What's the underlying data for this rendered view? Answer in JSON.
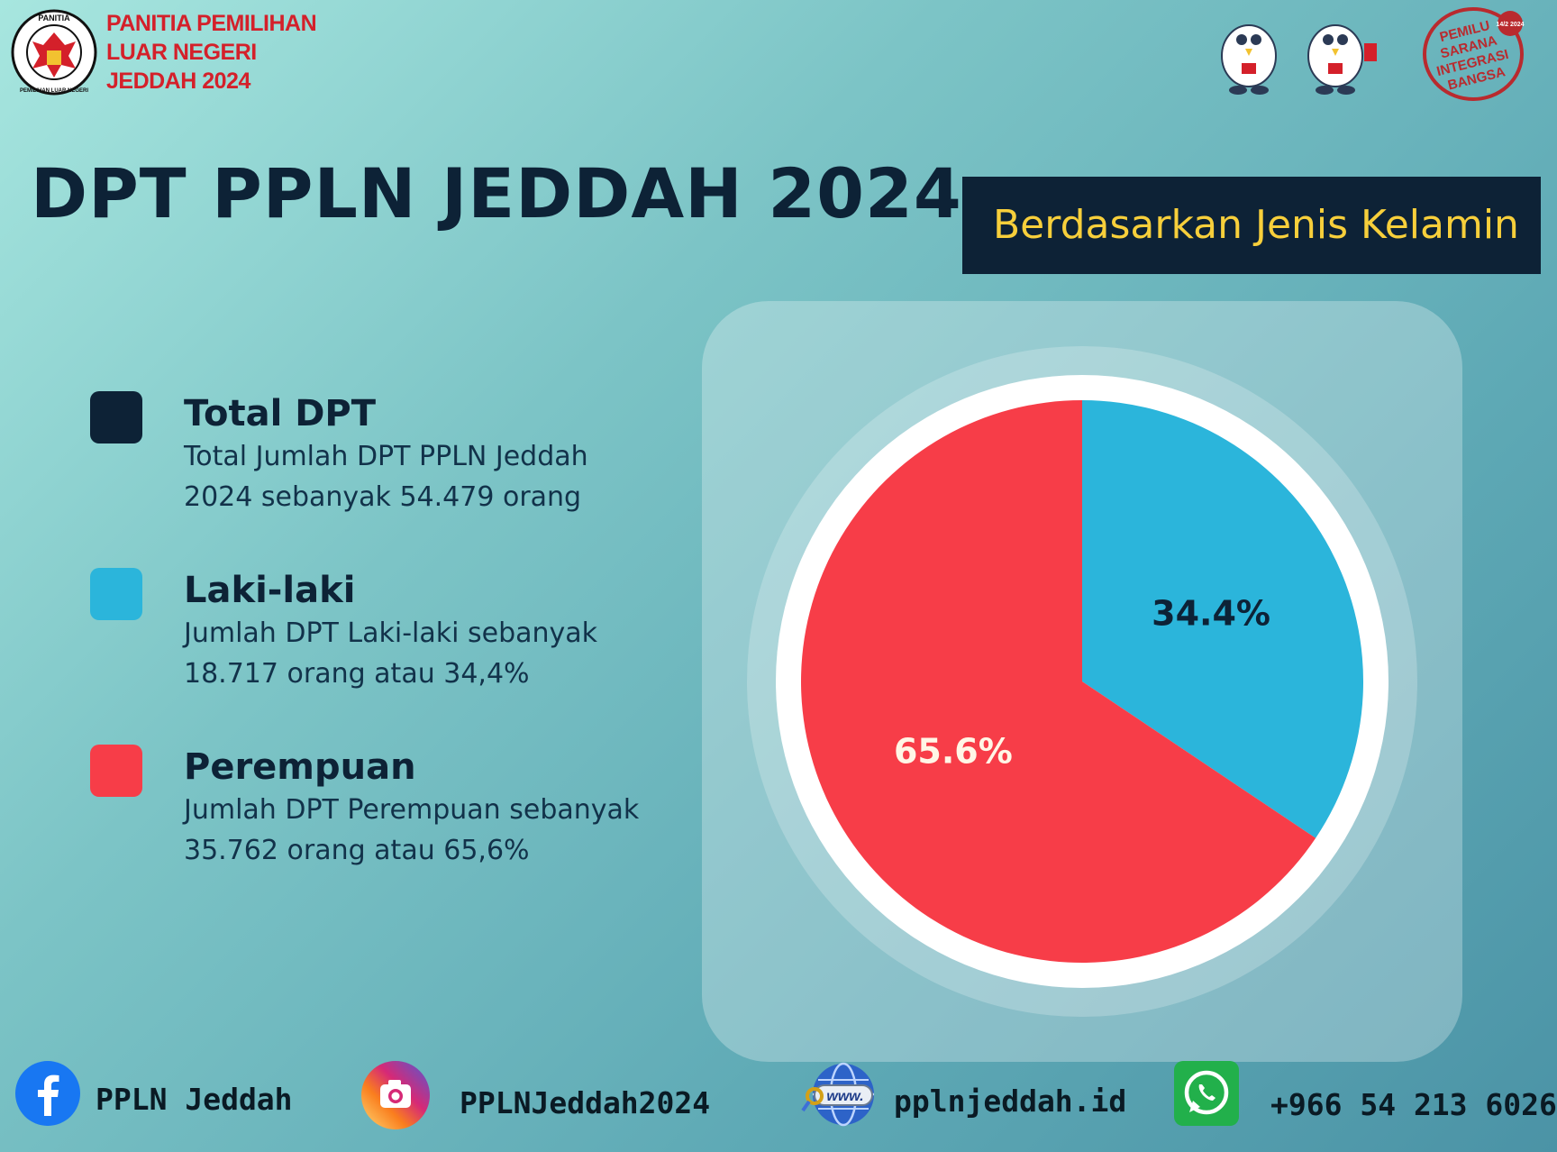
{
  "header": {
    "org_lines": [
      "PANITIA PEMILIHAN",
      "LUAR NEGERI",
      "JEDDAH 2024"
    ],
    "emblem_text_top": "PANITIA",
    "emblem_text_bottom": "PEMILIHAN LUAR NEGERI",
    "stamp_lines": [
      "PEMILU",
      "SARANA",
      "INTEGRASI",
      "BANGSA"
    ],
    "stamp_date": "14/2 2024"
  },
  "title": "DPT PPLN JEDDAH 2024",
  "subtitle": "Berdasarkan Jenis Kelamin",
  "legend": [
    {
      "title": "Total DPT",
      "lines": [
        "Total Jumlah DPT PPLN Jeddah",
        "2024 sebanyak 54.479 orang"
      ],
      "color": "#0d2236"
    },
    {
      "title": "Laki-laki",
      "lines": [
        "Jumlah DPT Laki-laki sebanyak",
        "18.717 orang atau 34,4%"
      ],
      "color": "#2bb5db"
    },
    {
      "title": "Perempuan",
      "lines": [
        "Jumlah DPT Perempuan sebanyak",
        "35.762 orang atau 65,6%"
      ],
      "color": "#f73d48"
    }
  ],
  "chart_data": {
    "type": "pie",
    "slices": [
      {
        "label": "Laki-laki",
        "value": 34.4,
        "display": "34.4%",
        "color": "#2bb5db",
        "label_color": "#0d2236"
      },
      {
        "label": "Perempuan",
        "value": 65.6,
        "display": "65.6%",
        "color": "#f73d48",
        "label_color": "#fff6e6"
      }
    ]
  },
  "footer": {
    "facebook": "PPLN Jeddah",
    "instagram": "PPLNJeddah2024",
    "website": "pplnjeddah.id",
    "website_badge": "www.",
    "whatsapp": "+966 54 213 6026"
  }
}
